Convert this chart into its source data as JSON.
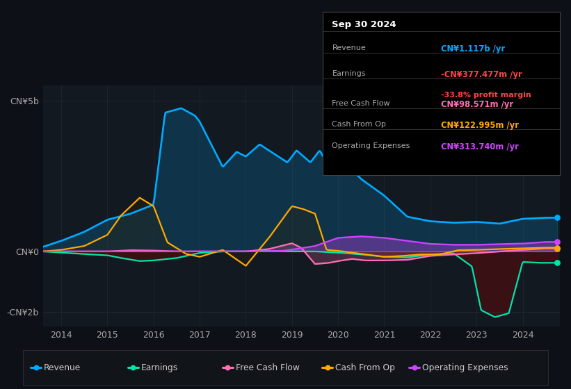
{
  "bg_color": "#0d1117",
  "plot_bg_color": "#131920",
  "revenue_color": "#00aaff",
  "earnings_color": "#00e5aa",
  "free_cash_flow_color": "#ff6eb4",
  "cash_from_op_color": "#ffaa00",
  "operating_expenses_color": "#cc44ff",
  "earnings_fill_color": "#5a0a0a",
  "cash_from_op_fill_color": "#2a2010",
  "xticks": [
    2014,
    2015,
    2016,
    2017,
    2018,
    2019,
    2020,
    2021,
    2022,
    2023,
    2024
  ],
  "ylim": [
    -2.5,
    5.5
  ],
  "info_box": {
    "date": "Sep 30 2024",
    "revenue_label": "Revenue",
    "revenue_val": "CN¥1.117b /yr",
    "revenue_color": "#00aaff",
    "earnings_label": "Earnings",
    "earnings_val": "-CN¥377.477m /yr",
    "earnings_color": "#ff4444",
    "margin_val": "-33.8% profit margin",
    "margin_color": "#ff4444",
    "fcf_label": "Free Cash Flow",
    "fcf_val": "CN¥98.571m /yr",
    "fcf_color": "#ff6eb4",
    "cashop_label": "Cash From Op",
    "cashop_val": "CN¥122.995m /yr",
    "cashop_color": "#ffaa00",
    "opex_label": "Operating Expenses",
    "opex_val": "CN¥313.740m /yr",
    "opex_color": "#cc44ff"
  },
  "legend": [
    {
      "label": "Revenue",
      "color": "#00aaff"
    },
    {
      "label": "Earnings",
      "color": "#00e5aa"
    },
    {
      "label": "Free Cash Flow",
      "color": "#ff6eb4"
    },
    {
      "label": "Cash From Op",
      "color": "#ffaa00"
    },
    {
      "label": "Operating Expenses",
      "color": "#cc44ff"
    }
  ]
}
